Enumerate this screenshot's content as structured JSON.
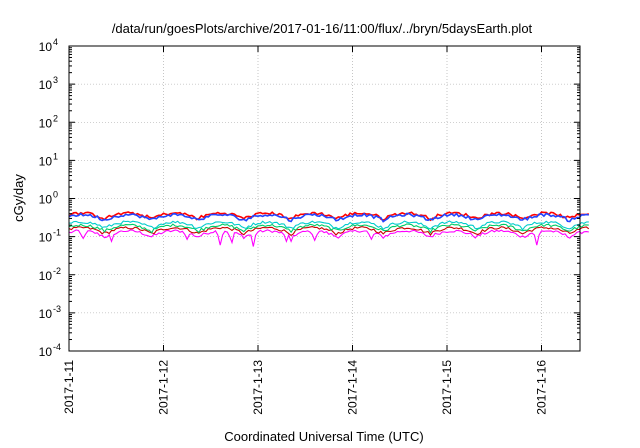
{
  "chart_data": {
    "type": "line",
    "title": "/data/run/goesPlots/archive/2017-01-16/11:00/flux/../bryn/5daysEarth.plot",
    "xlabel": "Coordinated Universal Time (UTC)",
    "ylabel": "cGy/day",
    "y_scale": "log",
    "ylim": [
      0.0001,
      10000
    ],
    "y_ticks": [
      {
        "base": "10",
        "exp": "-4",
        "value": 0.0001
      },
      {
        "base": "10",
        "exp": "-3",
        "value": 0.001
      },
      {
        "base": "10",
        "exp": "-2",
        "value": 0.01
      },
      {
        "base": "10",
        "exp": "-1",
        "value": 0.1
      },
      {
        "base": "10",
        "exp": "0",
        "value": 1
      },
      {
        "base": "10",
        "exp": "1",
        "value": 10
      },
      {
        "base": "10",
        "exp": "2",
        "value": 100
      },
      {
        "base": "10",
        "exp": "3",
        "value": 1000
      },
      {
        "base": "10",
        "exp": "4",
        "value": 10000
      }
    ],
    "xlim": [
      "2017-01-11",
      "2017-01-16 12:00"
    ],
    "x_ticks": [
      "2017-1-11",
      "2017-1-12",
      "2017-1-13",
      "2017-1-14",
      "2017-1-15",
      "2017-1-16"
    ],
    "grid": true,
    "legend": "none",
    "series": [
      {
        "color": "#ff00ff",
        "base": 0.12,
        "dips": [
          [
            0.45,
            0.075
          ],
          [
            1.25,
            0.085
          ],
          [
            1.6,
            0.06
          ],
          [
            1.72,
            0.06
          ],
          [
            1.95,
            0.055
          ],
          [
            2.3,
            0.075
          ],
          [
            2.35,
            0.075
          ],
          [
            2.6,
            0.08
          ],
          [
            4.95,
            0.06
          ],
          [
            5.6,
            0.06
          ],
          [
            5.75,
            0.08
          ],
          [
            3.2,
            0.085
          ],
          [
            0.15,
            0.09
          ]
        ]
      },
      {
        "color": "#cc0000",
        "base": 0.145,
        "dips": []
      },
      {
        "color": "#00cc66",
        "base": 0.17,
        "dips": []
      },
      {
        "color": "#00cccc",
        "base": 0.205,
        "dips": []
      },
      {
        "color": "#ff0000",
        "base": 0.33,
        "dips": []
      },
      {
        "color": "#2244ff",
        "base": 0.3,
        "dips": []
      }
    ]
  }
}
